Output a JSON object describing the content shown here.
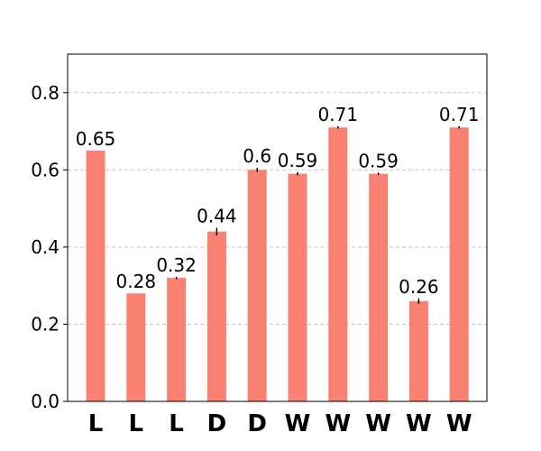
{
  "chart_data": {
    "type": "bar",
    "categories": [
      "L",
      "L",
      "L",
      "D",
      "D",
      "W",
      "W",
      "W",
      "W",
      "W"
    ],
    "values": [
      0.65,
      0.28,
      0.32,
      0.44,
      0.6,
      0.59,
      0.71,
      0.59,
      0.26,
      0.71
    ],
    "errors": [
      0,
      0,
      0.003,
      0.01,
      0.005,
      0.004,
      0.003,
      0.003,
      0.007,
      0.003
    ],
    "color": "#fa8072",
    "ylim": [
      0,
      0.9
    ],
    "yticks": [
      {
        "value": 0,
        "label": "0.0"
      },
      0.2,
      0.4,
      0.6,
      0.8
    ],
    "grid": true
  }
}
